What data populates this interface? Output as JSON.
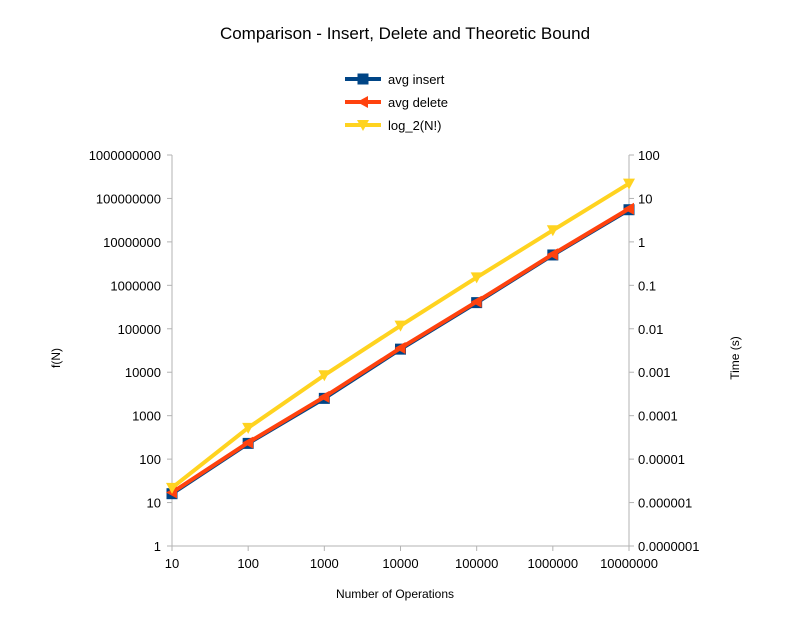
{
  "chart_data": {
    "type": "line",
    "title": "Comparison - Insert, Delete and Theoretic Bound",
    "xlabel": "Number of Operations",
    "ylabel": "f(N)",
    "y2label": "Time (s)",
    "x": [
      "10",
      "100",
      "1000",
      "10000",
      "100000",
      "1000000",
      "10000000"
    ],
    "x_values": [
      10,
      100,
      1000,
      10000,
      100000,
      1000000,
      10000000
    ],
    "x_scale": "log",
    "y_scale": "log",
    "y2_scale": "log",
    "ylim": [
      1,
      1000000000
    ],
    "y2lim": [
      1e-07,
      100
    ],
    "y_ticks": [
      "1",
      "10",
      "100",
      "1000",
      "10000",
      "100000",
      "1000000",
      "10000000",
      "100000000",
      "1000000000"
    ],
    "y2_ticks": [
      "0.0000001",
      "0.000001",
      "0.00001",
      "0.0001",
      "0.001",
      "0.01",
      "0.1",
      "1",
      "10",
      "100"
    ],
    "grid": false,
    "legend_position": "top-center",
    "series": [
      {
        "name": "avg insert",
        "axis": "y2",
        "color": "#004586",
        "marker": "square",
        "values": [
          1.6e-06,
          2.3e-05,
          0.00025,
          0.0034,
          0.04,
          0.5,
          5.5
        ]
      },
      {
        "name": "avg delete",
        "axis": "y2",
        "color": "#ff420e",
        "marker": "triangle-left",
        "values": [
          1.7e-06,
          2.4e-05,
          0.00027,
          0.0036,
          0.042,
          0.52,
          5.8
        ]
      },
      {
        "name": "log_2(N!)",
        "axis": "y",
        "color": "#ffd320",
        "marker": "triangle-down",
        "values": [
          21.8,
          525,
          8530,
          118000,
          1520000,
          18500000,
          220000000
        ]
      }
    ]
  }
}
